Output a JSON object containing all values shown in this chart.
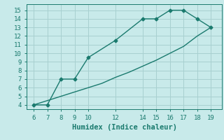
{
  "xlabel": "Humidex (Indice chaleur)",
  "line1_x": [
    6,
    7,
    8,
    9,
    10,
    12,
    14,
    15,
    16,
    17,
    18,
    19
  ],
  "line1_y": [
    4,
    4,
    7,
    7,
    9.5,
    11.5,
    14,
    14,
    15,
    15,
    14,
    13
  ],
  "line2_x": [
    6,
    7,
    8,
    9,
    10,
    11,
    12,
    13,
    14,
    15,
    16,
    17,
    18,
    19
  ],
  "line2_y": [
    4,
    4.5,
    5.0,
    5.5,
    6.0,
    6.5,
    7.2,
    7.8,
    8.5,
    9.2,
    10.0,
    10.8,
    12.0,
    13.0
  ],
  "line_color": "#1a7a6e",
  "bg_color": "#c8eaea",
  "grid_color": "#a8d0d0",
  "xlim": [
    5.5,
    19.8
  ],
  "ylim": [
    3.5,
    15.7
  ],
  "xticks": [
    6,
    7,
    8,
    9,
    10,
    12,
    14,
    15,
    16,
    17,
    18,
    19
  ],
  "yticks": [
    4,
    5,
    6,
    7,
    8,
    9,
    10,
    11,
    12,
    13,
    14,
    15
  ],
  "xlabel_fontsize": 7.5,
  "tick_fontsize": 6.5
}
